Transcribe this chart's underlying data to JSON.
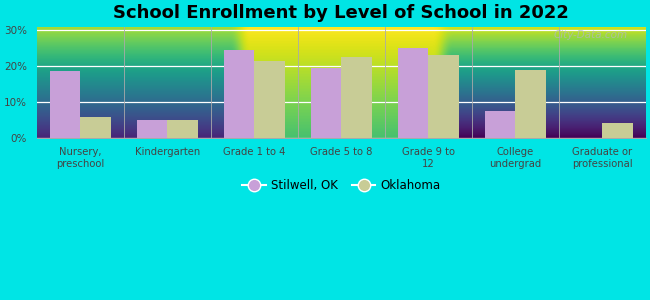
{
  "title": "School Enrollment by Level of School in 2022",
  "categories": [
    "Nursery,\npreschool",
    "Kindergarten",
    "Grade 1 to 4",
    "Grade 5 to 8",
    "Grade 9 to\n12",
    "College\nundergrad",
    "Graduate or\nprofessional"
  ],
  "stilwell_values": [
    18.5,
    5.0,
    24.5,
    19.5,
    25.0,
    7.5,
    0
  ],
  "oklahoma_values": [
    5.8,
    5.0,
    21.5,
    22.5,
    23.0,
    19.0,
    4.0
  ],
  "stilwell_color": "#c8a0d8",
  "oklahoma_color": "#c8cc96",
  "background_outer": "#00e5e5",
  "gradient_top": "#f5fffa",
  "gradient_bottom": "#b8e8b0",
  "yticks": [
    0,
    10,
    20,
    30
  ],
  "ylim": [
    0,
    31
  ],
  "legend_labels": [
    "Stilwell, OK",
    "Oklahoma"
  ],
  "title_fontsize": 13,
  "watermark": "City-Data.com"
}
